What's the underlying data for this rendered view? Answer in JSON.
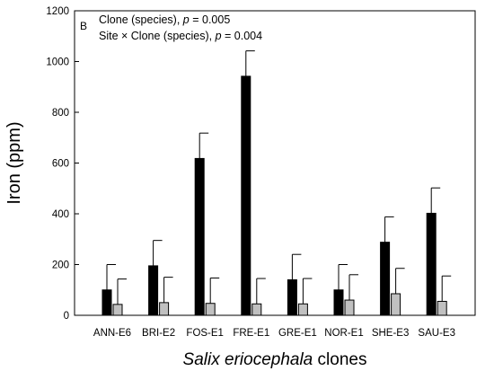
{
  "chart_data": {
    "type": "bar",
    "panel_label": "B",
    "annotations": [
      {
        "lines": [
          [
            {
              "text": "Clone (species), "
            },
            {
              "text": "p",
              "italic": true
            },
            {
              "text": " = 0.005"
            }
          ],
          [
            {
              "text": "Site × Clone (species), "
            },
            {
              "text": "p",
              "italic": true
            },
            {
              "text": " = 0.004"
            }
          ]
        ]
      }
    ],
    "ylabel": "Iron (ppm)",
    "xlabel_parts": [
      {
        "text": "Salix eriocephala",
        "italic": true
      },
      {
        "text": " clones",
        "italic": false
      }
    ],
    "ylim": [
      0,
      1200
    ],
    "yticks": [
      0,
      200,
      400,
      600,
      800,
      1000,
      1200
    ],
    "categories": [
      "ANN-E6",
      "BRI-E2",
      "FOS-E1",
      "FRE-E1",
      "GRE-E1",
      "NOR-E1",
      "SHE-E3",
      "SAU-E3"
    ],
    "series": [
      {
        "color": "#000000",
        "values": [
          100,
          195,
          618,
          942,
          140,
          100,
          288,
          402
        ],
        "error": [
          100,
          100,
          100,
          100,
          100,
          100,
          100,
          100
        ]
      },
      {
        "color": "#c0c0c0",
        "values": [
          43,
          50,
          47,
          45,
          45,
          60,
          85,
          55
        ],
        "error": [
          100,
          100,
          100,
          100,
          100,
          100,
          100,
          100
        ]
      }
    ],
    "grid": false
  }
}
